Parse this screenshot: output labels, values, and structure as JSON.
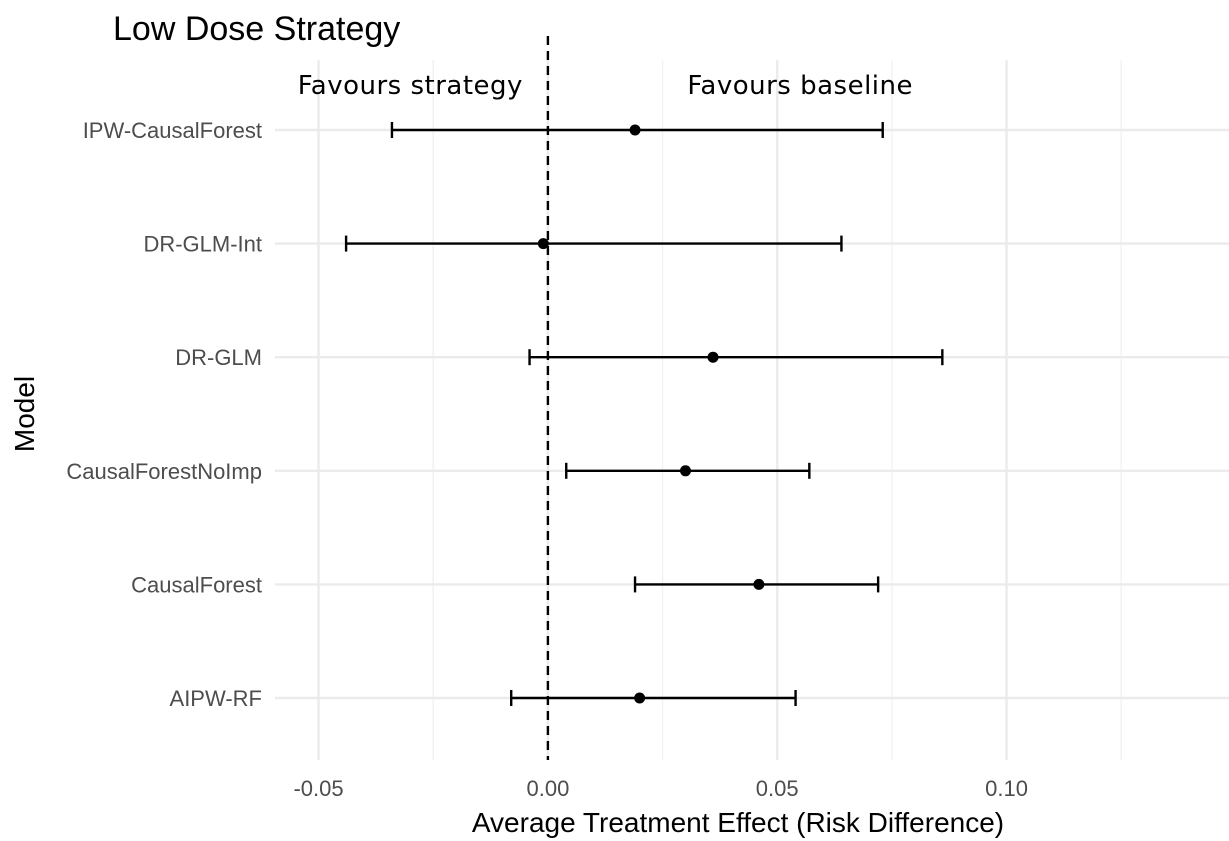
{
  "chart_data": {
    "type": "forest",
    "title": "Low Dose Strategy",
    "xlabel": "Average Treatment Effect (Risk Difference)",
    "ylabel": "Model",
    "xlim": [
      -0.0595,
      0.1485
    ],
    "x_ticks": [
      -0.05,
      0.0,
      0.05,
      0.1
    ],
    "x_tick_labels": [
      "-0.05",
      "0.00",
      "0.05",
      "0.10"
    ],
    "x_minor_ticks": [
      -0.025,
      0.025,
      0.075,
      0.125
    ],
    "reference_line": 0,
    "grid": true,
    "annotations": [
      {
        "text": "Favours strategy",
        "x": -0.03,
        "position": "top"
      },
      {
        "text": "Favours baseline",
        "x": 0.055,
        "position": "top"
      }
    ],
    "series": [
      {
        "model": "IPW-CausalForest",
        "estimate": 0.019,
        "lower": -0.034,
        "upper": 0.073
      },
      {
        "model": "DR-GLM-Int",
        "estimate": -0.001,
        "lower": -0.044,
        "upper": 0.064
      },
      {
        "model": "DR-GLM",
        "estimate": 0.036,
        "lower": -0.004,
        "upper": 0.086
      },
      {
        "model": "CausalForestNoImp",
        "estimate": 0.03,
        "lower": 0.004,
        "upper": 0.057
      },
      {
        "model": "CausalForest",
        "estimate": 0.046,
        "lower": 0.019,
        "upper": 0.072
      },
      {
        "model": "AIPW-RF",
        "estimate": 0.02,
        "lower": -0.008,
        "upper": 0.054
      }
    ]
  }
}
